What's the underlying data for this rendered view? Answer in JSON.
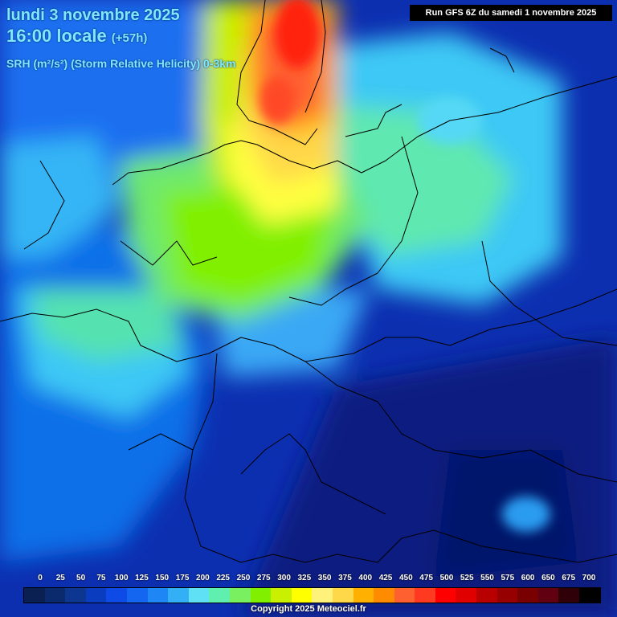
{
  "header": {
    "date": "lundi 3 novembre 2025",
    "time": "16:00 locale",
    "offset": "(+57h)",
    "parameter": "SRH (m²/s²) (Storm Relative Helicity) 0-3km",
    "run": "Run GFS 6Z du samedi 1 novembre 2025"
  },
  "legend": {
    "labels": [
      "0",
      "25",
      "50",
      "75",
      "100",
      "125",
      "150",
      "175",
      "200",
      "225",
      "250",
      "275",
      "300",
      "325",
      "350",
      "375",
      "400",
      "425",
      "450",
      "475",
      "500",
      "525",
      "550",
      "575",
      "600",
      "650",
      "675",
      "700"
    ],
    "colors": [
      "#0a1f52",
      "#0b2a6e",
      "#0d3690",
      "#0a3cc0",
      "#0d4ae6",
      "#1466f0",
      "#1f86f5",
      "#33b0f5",
      "#5fe0f5",
      "#5ff0b0",
      "#78f060",
      "#80f000",
      "#c8f000",
      "#ffff00",
      "#fff27a",
      "#ffd84a",
      "#ffb000",
      "#ff8c00",
      "#ff6030",
      "#ff3a20",
      "#ff0000",
      "#e00000",
      "#b80000",
      "#960000",
      "#780000",
      "#600010",
      "#300008",
      "#000000"
    ]
  },
  "copyright": "Copyright 2025 Meteociel.fr"
}
